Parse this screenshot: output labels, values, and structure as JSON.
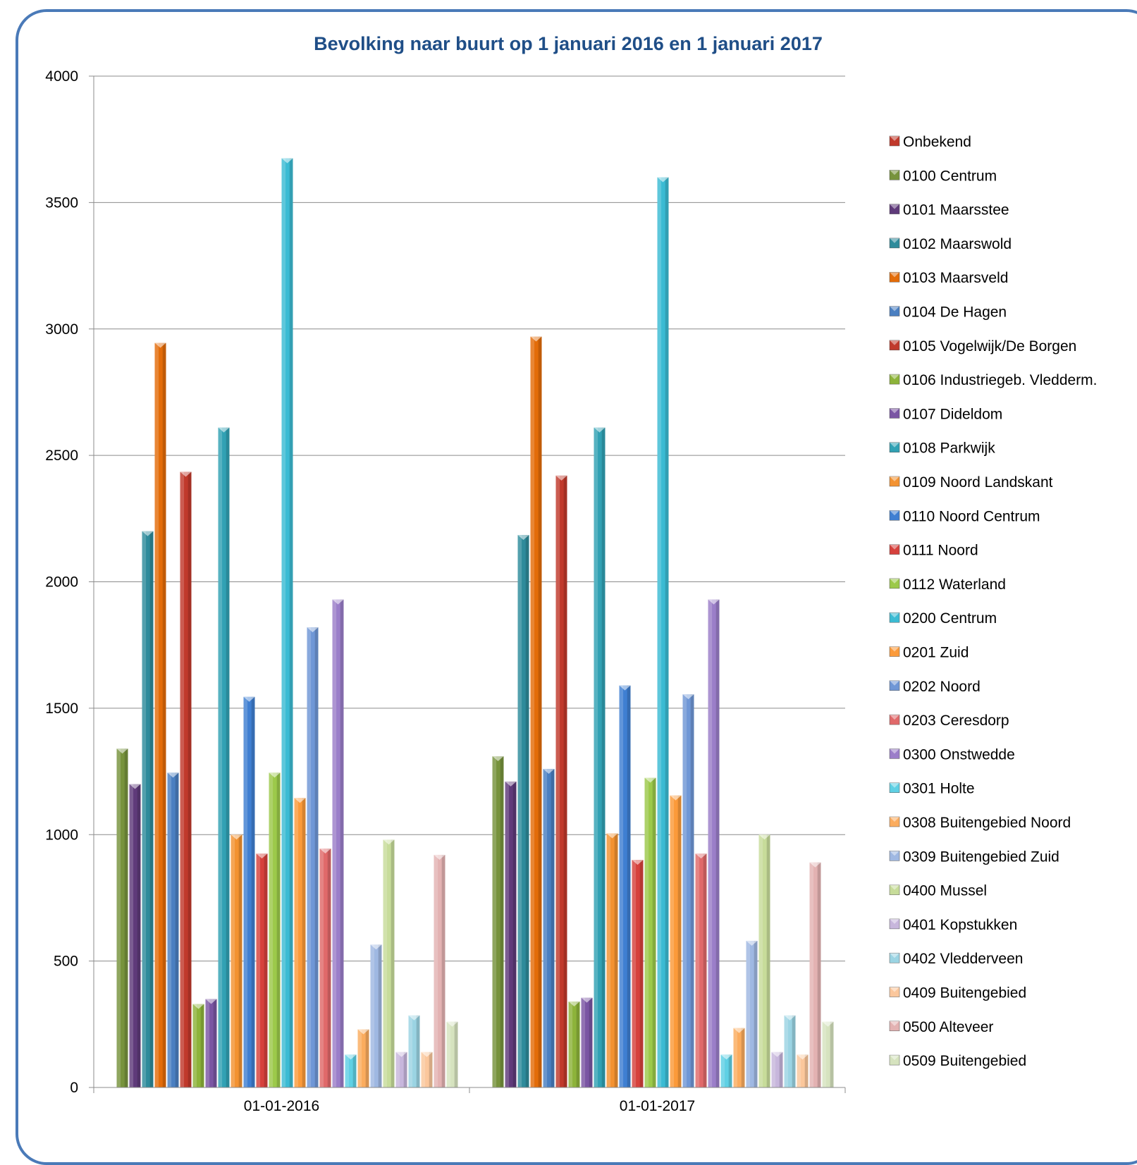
{
  "chart_data": {
    "type": "bar",
    "title": "Bevolking naar buurt op 1 januari 2016 en 1 januari 2017",
    "xlabel": "",
    "ylabel": "",
    "ylim": [
      0,
      4000
    ],
    "yticks": [
      0,
      500,
      1000,
      1500,
      2000,
      2500,
      3000,
      3500,
      4000
    ],
    "grid": true,
    "legend_position": "right",
    "categories": [
      "01-01-2016",
      "01-01-2017"
    ],
    "series": [
      {
        "name": "Onbekend",
        "color": "#c0392b",
        "values": [
          0,
          0
        ]
      },
      {
        "name": "0100 Centrum",
        "color": "#77933c",
        "values": [
          1340,
          1310
        ]
      },
      {
        "name": "0101 Maarsstee",
        "color": "#5f3a7a",
        "values": [
          1200,
          1210
        ]
      },
      {
        "name": "0102 Maarswold",
        "color": "#2e8b9b",
        "values": [
          2200,
          2185
        ]
      },
      {
        "name": "0103 Maarsveld",
        "color": "#e36c09",
        "values": [
          2945,
          2970
        ]
      },
      {
        "name": "0104 De Hagen",
        "color": "#4a7fc1",
        "values": [
          1245,
          1260
        ]
      },
      {
        "name": "0105 Vogelwijk/De Borgen",
        "color": "#c0392b",
        "values": [
          2435,
          2420
        ]
      },
      {
        "name": "0106 Industriegeb. Vledderm.",
        "color": "#8db33a",
        "values": [
          330,
          340
        ]
      },
      {
        "name": "0107 Dideldom",
        "color": "#7a55a3",
        "values": [
          350,
          355
        ]
      },
      {
        "name": "0108 Parkwijk",
        "color": "#31a1b4",
        "values": [
          2610,
          2610
        ]
      },
      {
        "name": "0109 Noord Landskant",
        "color": "#f39231",
        "values": [
          1000,
          1005
        ]
      },
      {
        "name": "0110 Noord Centrum",
        "color": "#3f7fd2",
        "values": [
          1545,
          1590
        ]
      },
      {
        "name": "0111 Noord",
        "color": "#d6413c",
        "values": [
          925,
          900
        ]
      },
      {
        "name": "0112 Waterland",
        "color": "#9cc94a",
        "values": [
          1245,
          1225
        ]
      },
      {
        "name": "0200 Centrum",
        "color": "#3bbbd3",
        "values": [
          3675,
          3600
        ]
      },
      {
        "name": "0201 Zuid",
        "color": "#fb9a3a",
        "values": [
          1145,
          1155
        ]
      },
      {
        "name": "0202 Noord",
        "color": "#6f97d6",
        "values": [
          1820,
          1555
        ]
      },
      {
        "name": "0203 Ceresdorp",
        "color": "#e0696a",
        "values": [
          945,
          925
        ]
      },
      {
        "name": "0300 Onstwedde",
        "color": "#9b7ec9",
        "values": [
          1930,
          1930
        ]
      },
      {
        "name": "0301 Holte",
        "color": "#5fd0e4",
        "values": [
          130,
          130
        ]
      },
      {
        "name": "0308 Buitengebied Noord",
        "color": "#fbac5e",
        "values": [
          230,
          235
        ]
      },
      {
        "name": "0309 Buitengebied Zuid",
        "color": "#9fb8e2",
        "values": [
          565,
          580
        ]
      },
      {
        "name": "0400 Mussel",
        "color": "#c7dc9a",
        "values": [
          980,
          1000
        ]
      },
      {
        "name": "0401 Kopstukken",
        "color": "#c7b6dc",
        "values": [
          140,
          140
        ]
      },
      {
        "name": "0402 Vledderveen",
        "color": "#9bd4e3",
        "values": [
          285,
          285
        ]
      },
      {
        "name": "0409 Buitengebied",
        "color": "#fbc79c",
        "values": [
          140,
          130
        ]
      },
      {
        "name": "0500 Alteveer",
        "color": "#e3b2b2",
        "values": [
          920,
          890
        ]
      },
      {
        "name": "0509 Buitengebied",
        "color": "#d6e3bf",
        "values": [
          260,
          260
        ]
      }
    ]
  }
}
